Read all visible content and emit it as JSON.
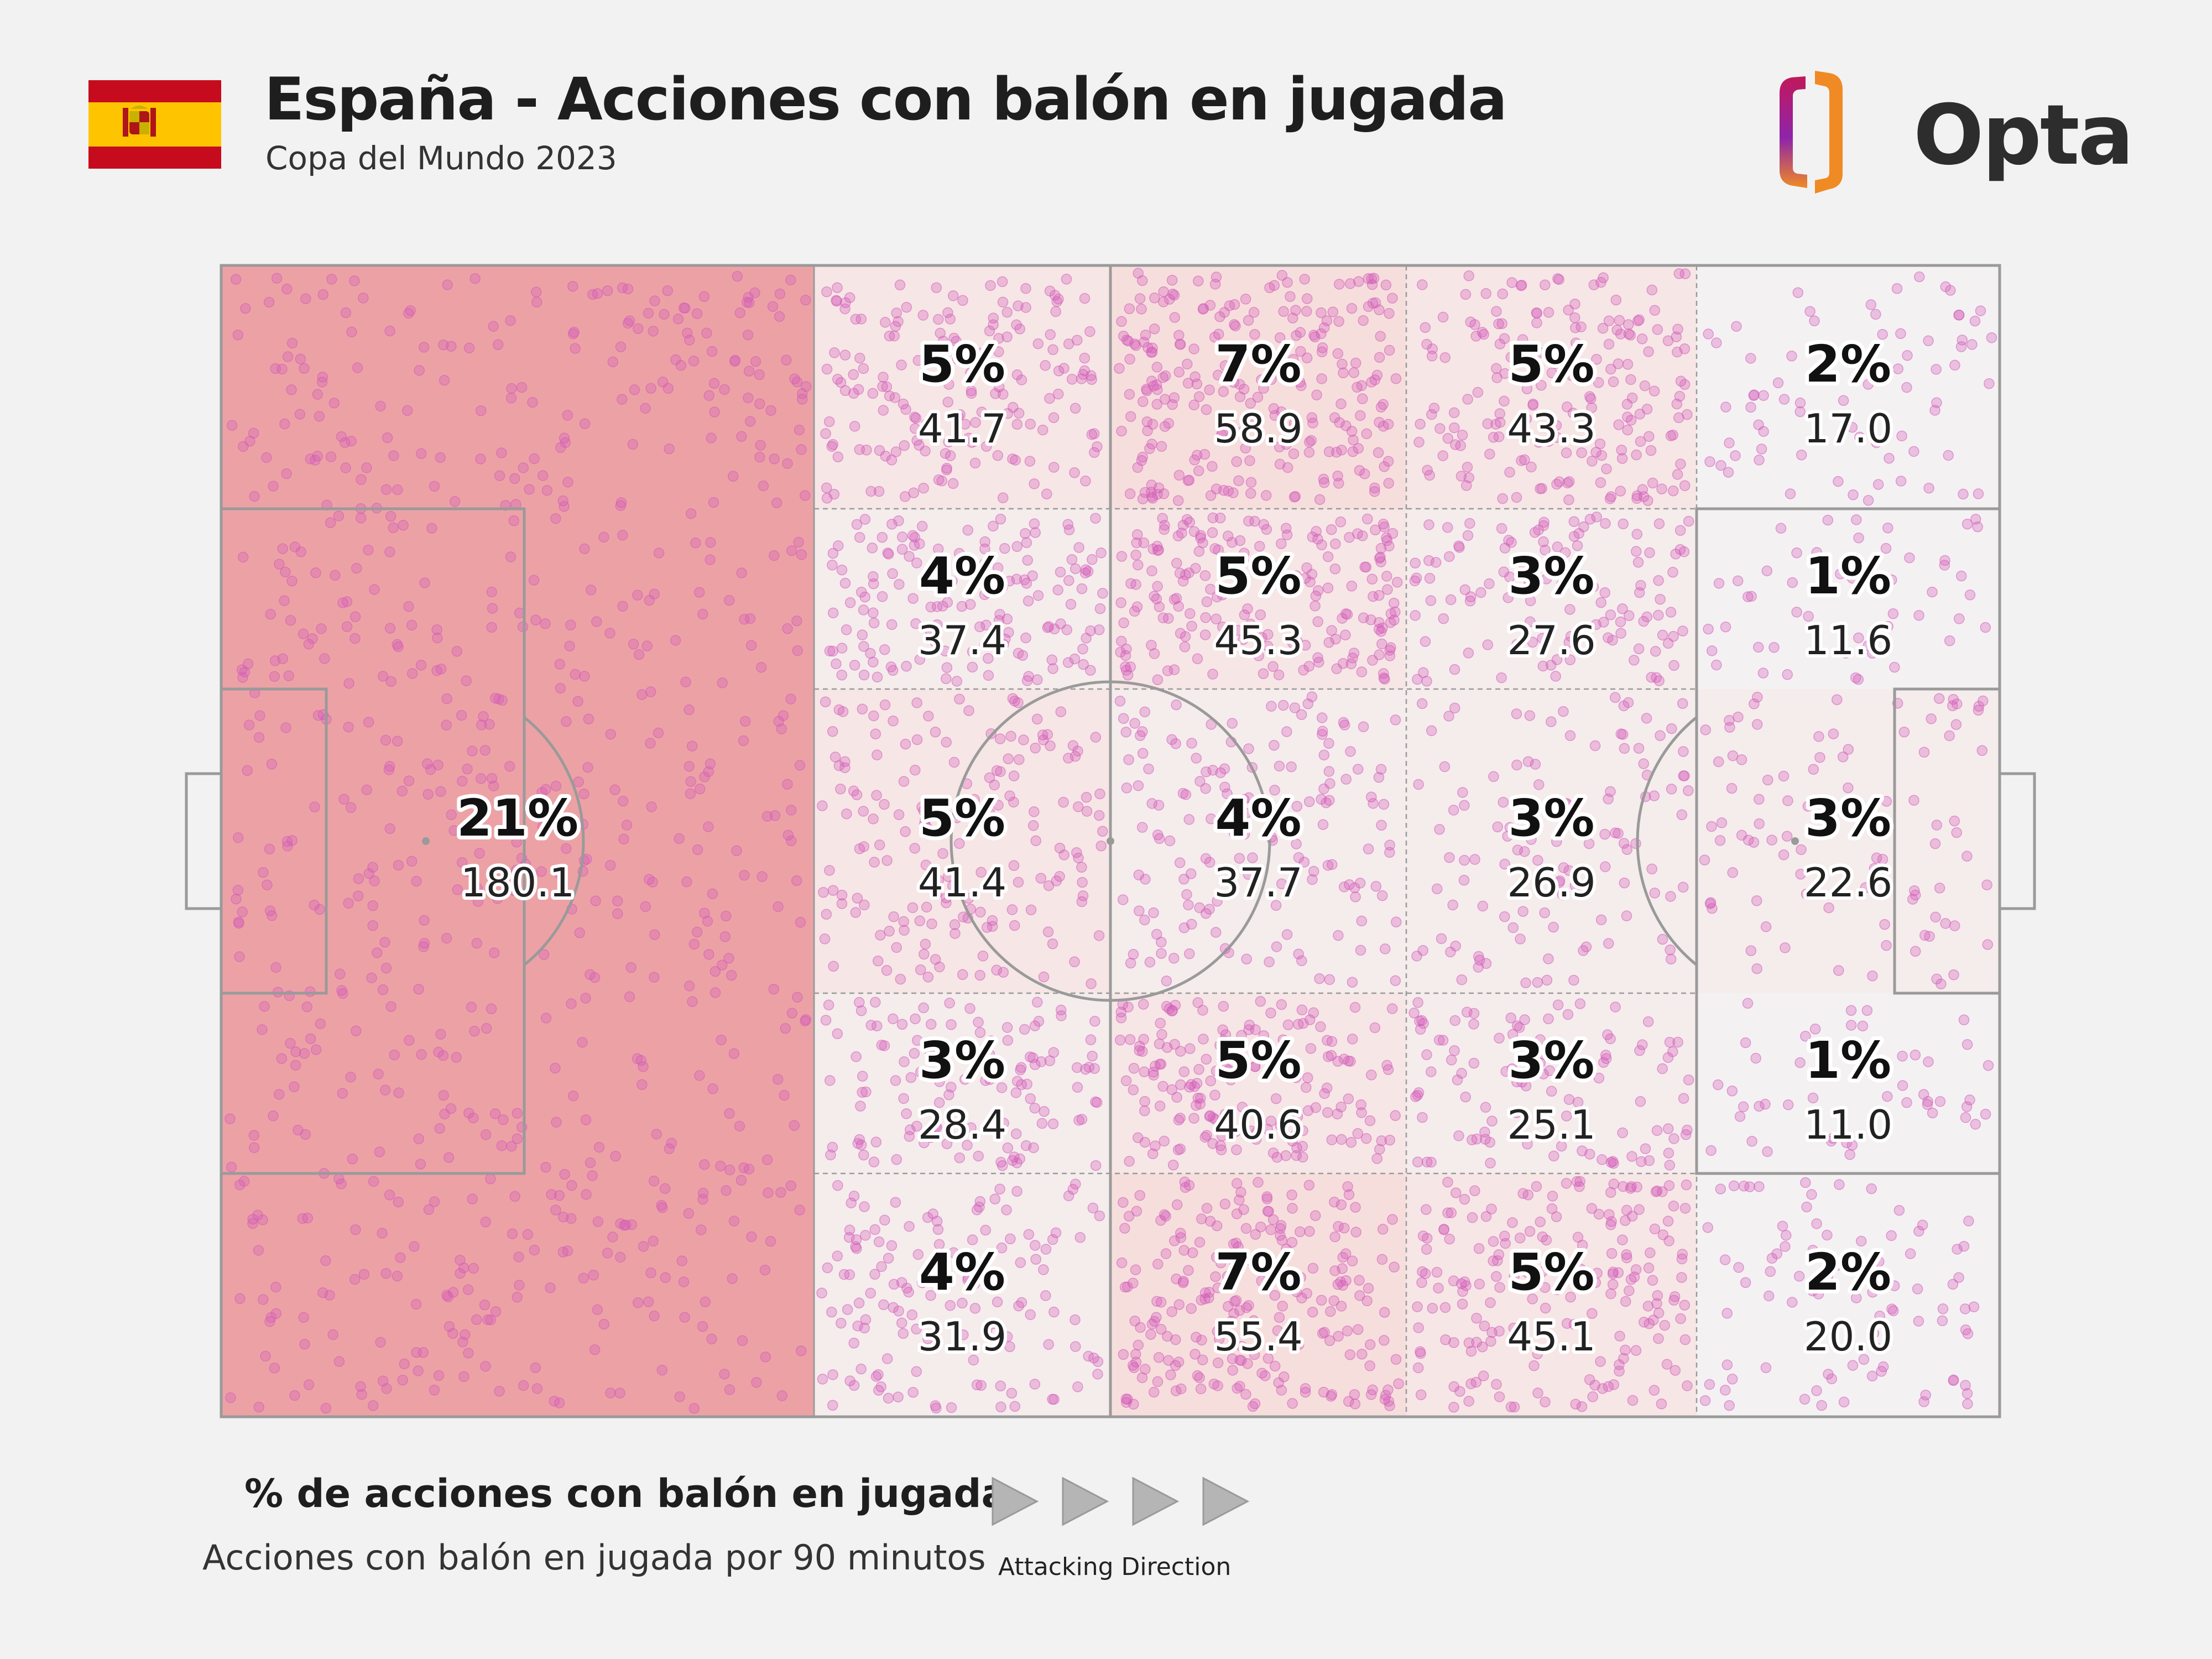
{
  "header": {
    "title": "España - Acciones con balón en jugada",
    "subtitle": "Copa del Mundo 2023",
    "brand": "Opta",
    "flag_icon": "spain-flag-icon",
    "logo_icon": "opta-logo-icon"
  },
  "colors": {
    "background": "#f2f2f2",
    "scatter_dot": "#d25ab9",
    "flag_red": "#c60b1e",
    "flag_yellow": "#ffc400",
    "logo_pink": "#c2185b",
    "logo_orange": "#f08a24"
  },
  "chart_data": {
    "type": "heatmap",
    "title": "% de acciones con balón en jugada",
    "subtitle": "Acciones con balón en jugada por 90 minutos",
    "direction_label": "Attacking Direction",
    "columns": [
      "zone-1",
      "zone-2",
      "zone-3",
      "zone-4",
      "zone-5"
    ],
    "rows": [
      "top",
      "upper",
      "center",
      "lower",
      "bottom"
    ],
    "zones": [
      {
        "id": "def-third",
        "column": 1,
        "rows": [
          1,
          5
        ],
        "pct": "21%",
        "per90": "180.1",
        "share": 0.21
      },
      {
        "id": "c2-r1",
        "column": 2,
        "rows": [
          1,
          1
        ],
        "pct": "5%",
        "per90": "41.7",
        "share": 0.05
      },
      {
        "id": "c2-r2",
        "column": 2,
        "rows": [
          2,
          2
        ],
        "pct": "4%",
        "per90": "37.4",
        "share": 0.04
      },
      {
        "id": "c2-r3",
        "column": 2,
        "rows": [
          3,
          3
        ],
        "pct": "5%",
        "per90": "41.4",
        "share": 0.05
      },
      {
        "id": "c2-r4",
        "column": 2,
        "rows": [
          4,
          4
        ],
        "pct": "3%",
        "per90": "28.4",
        "share": 0.03
      },
      {
        "id": "c2-r5",
        "column": 2,
        "rows": [
          5,
          5
        ],
        "pct": "4%",
        "per90": "31.9",
        "share": 0.04
      },
      {
        "id": "c3-r1",
        "column": 3,
        "rows": [
          1,
          1
        ],
        "pct": "7%",
        "per90": "58.9",
        "share": 0.07
      },
      {
        "id": "c3-r2",
        "column": 3,
        "rows": [
          2,
          2
        ],
        "pct": "5%",
        "per90": "45.3",
        "share": 0.05
      },
      {
        "id": "c3-r3",
        "column": 3,
        "rows": [
          3,
          3
        ],
        "pct": "4%",
        "per90": "37.7",
        "share": 0.04
      },
      {
        "id": "c3-r4",
        "column": 3,
        "rows": [
          4,
          4
        ],
        "pct": "5%",
        "per90": "40.6",
        "share": 0.05
      },
      {
        "id": "c3-r5",
        "column": 3,
        "rows": [
          5,
          5
        ],
        "pct": "7%",
        "per90": "55.4",
        "share": 0.07
      },
      {
        "id": "c4-r1",
        "column": 4,
        "rows": [
          1,
          1
        ],
        "pct": "5%",
        "per90": "43.3",
        "share": 0.05
      },
      {
        "id": "c4-r2",
        "column": 4,
        "rows": [
          2,
          2
        ],
        "pct": "3%",
        "per90": "27.6",
        "share": 0.03
      },
      {
        "id": "c4-r3",
        "column": 4,
        "rows": [
          3,
          3
        ],
        "pct": "3%",
        "per90": "26.9",
        "share": 0.03
      },
      {
        "id": "c4-r4",
        "column": 4,
        "rows": [
          4,
          4
        ],
        "pct": "3%",
        "per90": "25.1",
        "share": 0.03
      },
      {
        "id": "c4-r5",
        "column": 4,
        "rows": [
          5,
          5
        ],
        "pct": "5%",
        "per90": "45.1",
        "share": 0.05
      },
      {
        "id": "c5-r1",
        "column": 5,
        "rows": [
          1,
          1
        ],
        "pct": "2%",
        "per90": "17.0",
        "share": 0.02
      },
      {
        "id": "c5-r2",
        "column": 5,
        "rows": [
          2,
          2
        ],
        "pct": "1%",
        "per90": "11.6",
        "share": 0.01
      },
      {
        "id": "c5-r3",
        "column": 5,
        "rows": [
          3,
          3
        ],
        "pct": "3%",
        "per90": "22.6",
        "share": 0.03
      },
      {
        "id": "c5-r4",
        "column": 5,
        "rows": [
          4,
          4
        ],
        "pct": "1%",
        "per90": "11.0",
        "share": 0.01
      },
      {
        "id": "c5-r5",
        "column": 5,
        "rows": [
          5,
          5
        ],
        "pct": "2%",
        "per90": "20.0",
        "share": 0.02
      }
    ]
  },
  "legend": {
    "title": "% de acciones con balón en jugada",
    "subtitle": "Acciones con balón en jugada por 90 minutos",
    "direction_label": "Attacking Direction",
    "arrow_icon": "play-arrow-icon"
  }
}
